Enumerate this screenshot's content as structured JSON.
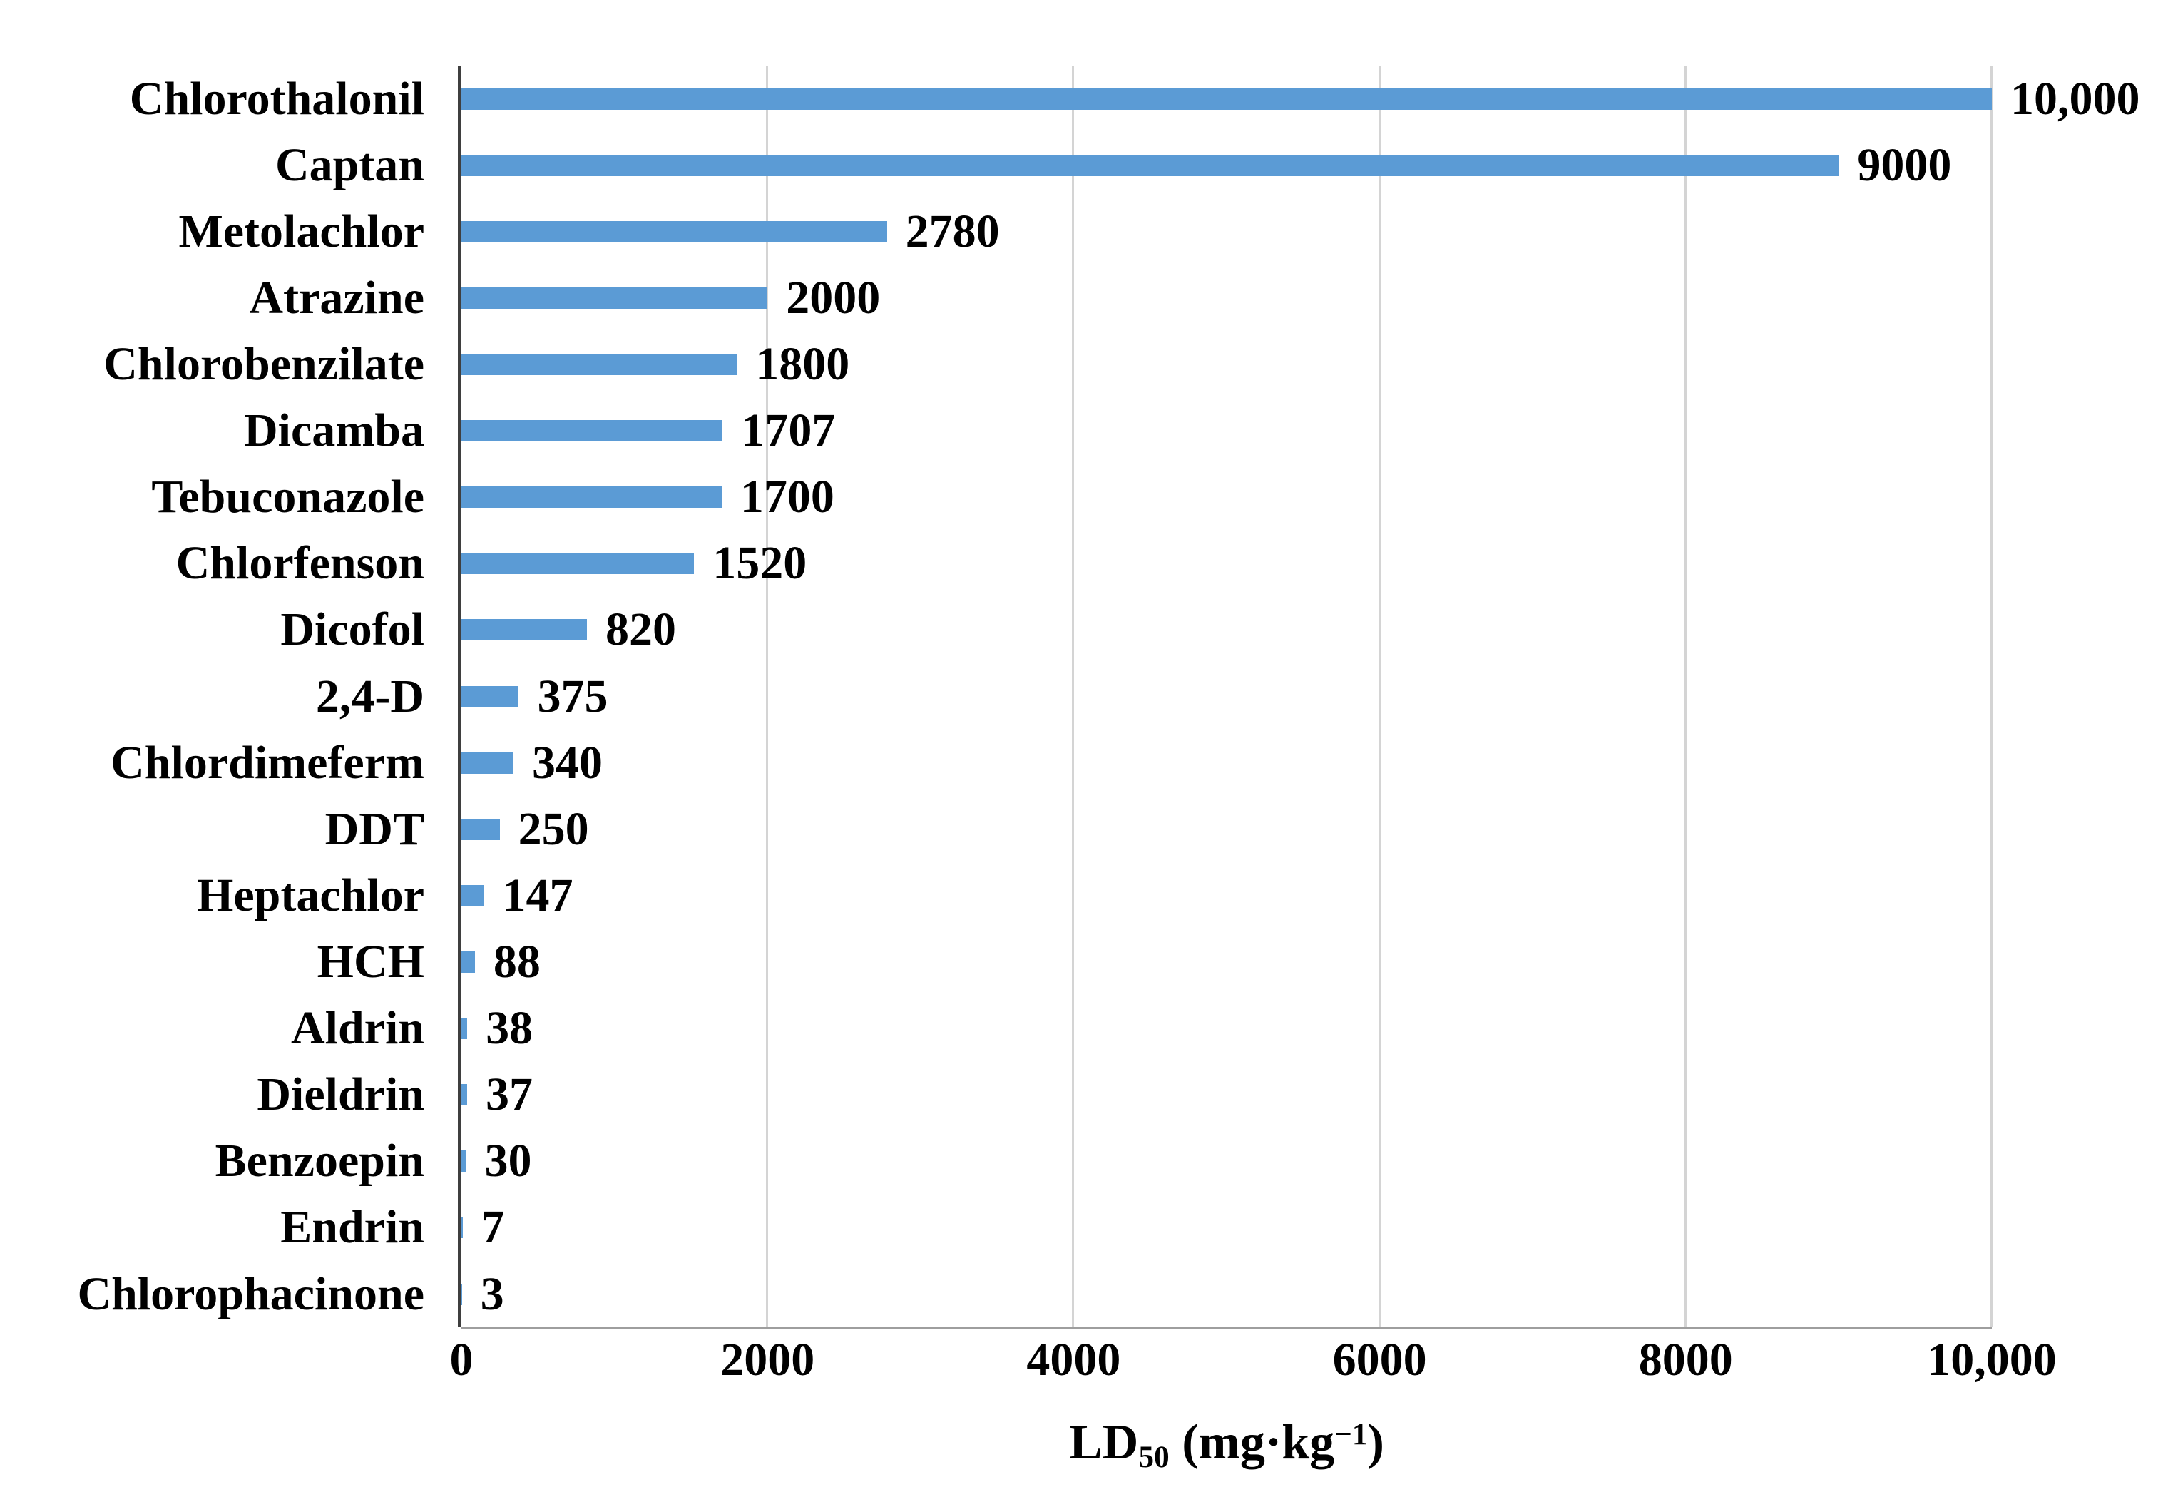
{
  "chart_data": {
    "type": "bar",
    "orientation": "horizontal",
    "title": "",
    "categories": [
      "Chlorothalonil",
      "Captan",
      "Metolachlor",
      "Atrazine",
      "Chlorobenzilate",
      "Dicamba",
      "Tebuconazole",
      "Chlorfenson",
      "Dicofol",
      "2,4-D",
      "Chlordimeferm",
      "DDT",
      "Heptachlor",
      "HCH",
      "Aldrin",
      "Dieldrin",
      "Benzoepin",
      "Endrin",
      "Chlorophacinone"
    ],
    "values": [
      10000,
      9000,
      2780,
      2000,
      1800,
      1707,
      1700,
      1520,
      820,
      375,
      340,
      250,
      147,
      88,
      38,
      37,
      30,
      7,
      3
    ],
    "value_labels": [
      "10,000",
      "9000",
      "2780",
      "2000",
      "1800",
      "1707",
      "1700",
      "1520",
      "820",
      "375",
      "340",
      "250",
      "147",
      "88",
      "38",
      "37",
      "30",
      "7",
      "3"
    ],
    "xlabel": {
      "prefix": "LD",
      "sub": "50",
      "mid": " (mg·kg",
      "sup": "−1",
      "suffix": ")"
    },
    "xticks": [
      {
        "v": 0,
        "label": "0"
      },
      {
        "v": 2000,
        "label": "2000"
      },
      {
        "v": 4000,
        "label": "4000"
      },
      {
        "v": 6000,
        "label": "6000"
      },
      {
        "v": 8000,
        "label": "8000"
      },
      {
        "v": 10000,
        "label": "10,000"
      }
    ],
    "xlim": [
      0,
      10000
    ],
    "grid": "vertical-only",
    "legend": "none",
    "colors": {
      "bar": "#5B9BD5",
      "gridline": "#D4D4D4",
      "y_axis_line": "#3F3F3F",
      "x_axis_line": "#9E9E9E",
      "text": "#000000",
      "background": "#FFFFFF"
    }
  }
}
